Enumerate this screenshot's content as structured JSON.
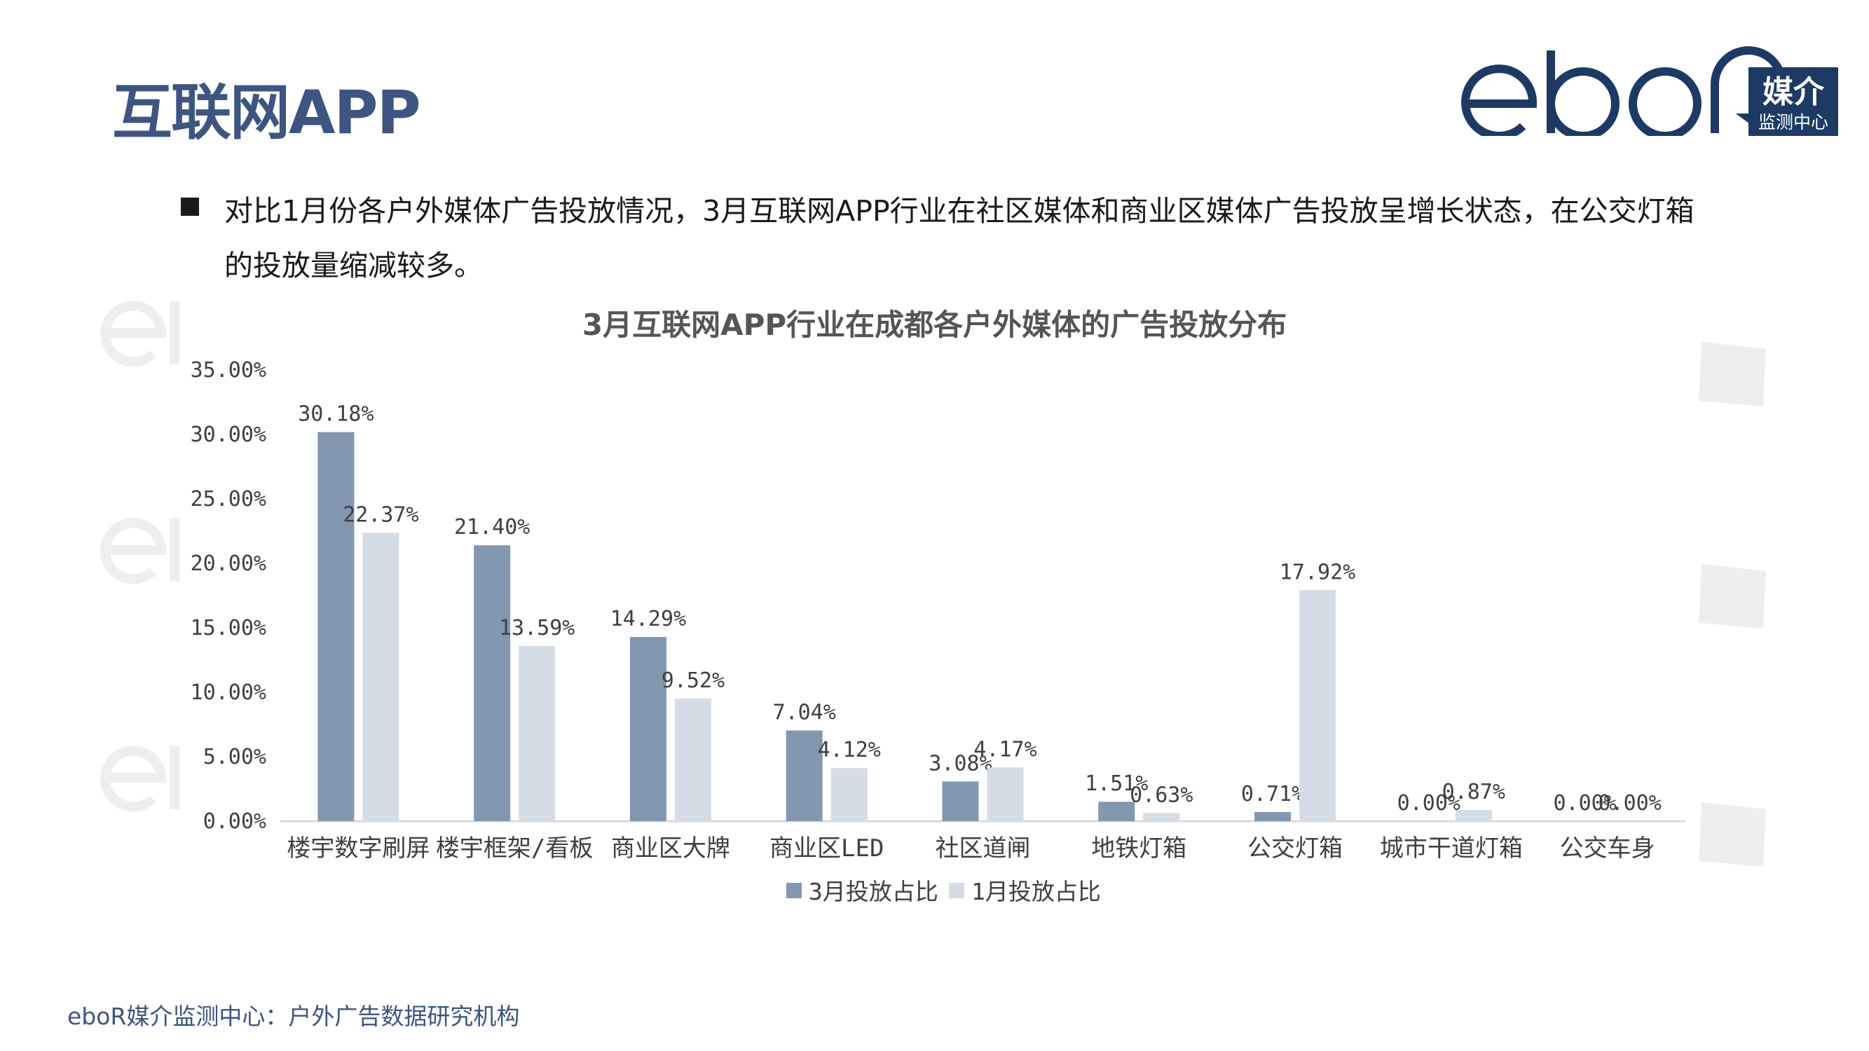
{
  "page": {
    "title": "互联网APP",
    "bullet": "对比1月份各户外媒体广告投放情况，3月互联网APP行业在社区媒体和商业区媒体广告投放呈增长状态，在公交灯箱的投放量缩减较多。",
    "footer": "eboR媒介监测中心：户外广告数据研究机构"
  },
  "logo": {
    "wordmark": "eboR",
    "badge_top": "媒介",
    "badge_bottom": "监测中心",
    "color": "#1c3a63"
  },
  "colors": {
    "series_march": "#8497b0",
    "series_jan": "#d6dce5",
    "axis": "#d9d9d9",
    "label": "#404040"
  },
  "chart_data": {
    "type": "bar",
    "title": "3月互联网APP行业在成都各户外媒体的广告投放分布",
    "categories": [
      "楼宇数字刷屏",
      "楼宇框架/看板",
      "商业区大牌",
      "商业区LED",
      "社区道闸",
      "地铁灯箱",
      "公交灯箱",
      "城市干道灯箱",
      "公交车身"
    ],
    "series": [
      {
        "name": "3月投放占比",
        "values": [
          30.18,
          21.4,
          14.29,
          7.04,
          3.08,
          1.51,
          0.71,
          0.0,
          0.0
        ],
        "labels": [
          "30.18%",
          "21.40%",
          "14.29%",
          "7.04%",
          "3.08%",
          "1.51%",
          "0.71%",
          "0.00%",
          "0.00%"
        ]
      },
      {
        "name": "1月投放占比",
        "values": [
          22.37,
          13.59,
          9.52,
          4.12,
          4.17,
          0.63,
          17.92,
          0.87,
          0.0
        ],
        "labels": [
          "22.37%",
          "13.59%",
          "9.52%",
          "4.12%",
          "4.17%",
          "0.63%",
          "17.92%",
          "0.87%",
          "0.00%"
        ]
      }
    ],
    "yticks": [
      "0.00%",
      "5.00%",
      "10.00%",
      "15.00%",
      "20.00%",
      "25.00%",
      "30.00%",
      "35.00%"
    ],
    "ylim": [
      0,
      35
    ],
    "grid": false,
    "legend": "bottom"
  }
}
